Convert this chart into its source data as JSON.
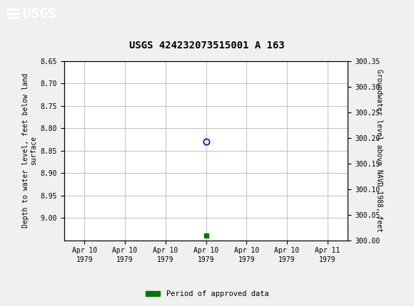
{
  "title": "USGS 424232073515001 A 163",
  "header_bg_color": "#1a6b3c",
  "header_text_color": "#ffffff",
  "bg_color": "#f0f0f0",
  "plot_bg_color": "#ffffff",
  "grid_color": "#c0c0c0",
  "left_ylabel_lines": [
    "Depth to water level, feet below land",
    "surface"
  ],
  "right_ylabel": "Groundwater level above NAVD 1988, feet",
  "ylim_left": [
    8.65,
    9.05
  ],
  "ylim_right": [
    300.0,
    300.35
  ],
  "yticks_left": [
    8.65,
    8.7,
    8.75,
    8.8,
    8.85,
    8.9,
    8.95,
    9.0
  ],
  "yticks_right": [
    300.0,
    300.05,
    300.1,
    300.15,
    300.2,
    300.25,
    300.3,
    300.35
  ],
  "xtick_labels": [
    "Apr 10\n1979",
    "Apr 10\n1979",
    "Apr 10\n1979",
    "Apr 10\n1979",
    "Apr 10\n1979",
    "Apr 10\n1979",
    "Apr 11\n1979"
  ],
  "data_x": [
    3.0
  ],
  "data_y_left": [
    8.83
  ],
  "circle_color": "#0000cc",
  "green_square_x": [
    3.0
  ],
  "green_square_y_left": [
    9.04
  ],
  "green_color": "#007700",
  "legend_label": "Period of approved data",
  "font_family": "DejaVu Sans Mono"
}
